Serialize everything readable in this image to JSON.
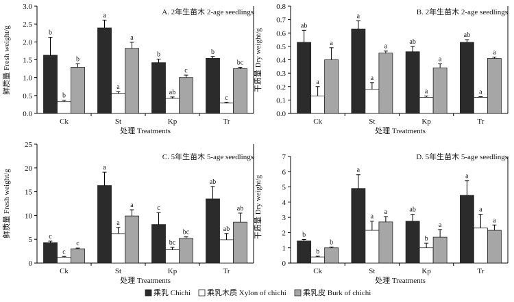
{
  "legend": [
    {
      "label": "乘乳 Chichi",
      "color": "#2b2b2b"
    },
    {
      "label": "乘乳木质 Xylon of chichi",
      "color": "#ffffff"
    },
    {
      "label": "乘乳皮 Burk of chichi",
      "color": "#a6a6a6"
    }
  ],
  "chart_data": [
    {
      "type": "bar",
      "title": "A. 2年生苗木 2-age seedlings",
      "xlabel": "处理 Treatments",
      "ylabel": "鲜质量 Fresh weight/g",
      "categories": [
        "Ck",
        "St",
        "Kp",
        "Tr"
      ],
      "ylim": [
        0,
        3.0
      ],
      "yticks": [
        "0.0",
        "0.5",
        "1.0",
        "1.5",
        "2.0",
        "2.5",
        "3.0"
      ],
      "series": [
        {
          "name": "乘乳 Chichi",
          "values": [
            1.63,
            2.39,
            1.42,
            1.54
          ],
          "errors": [
            0.5,
            0.22,
            0.1,
            0.05
          ],
          "labels": [
            "b",
            "a",
            "b",
            "b"
          ]
        },
        {
          "name": "乘乳木质 Xylon of chichi",
          "values": [
            0.33,
            0.56,
            0.42,
            0.29
          ],
          "errors": [
            0.04,
            0.05,
            0.04,
            0.02
          ],
          "labels": [
            "b",
            "a",
            "ab",
            "c"
          ]
        },
        {
          "name": "乘乳皮 Burk of chichi",
          "values": [
            1.29,
            1.82,
            1.0,
            1.25
          ],
          "errors": [
            0.1,
            0.17,
            0.07,
            0.04
          ],
          "labels": [
            "b",
            "a",
            "c",
            "bc"
          ]
        }
      ]
    },
    {
      "type": "bar",
      "title": "B. 2年生苗木 2-age seedlings",
      "xlabel": "处理 Treatments",
      "ylabel": "干质量 Dry weight/g",
      "categories": [
        "Ck",
        "St",
        "Kp",
        "Tr"
      ],
      "ylim": [
        0,
        0.8
      ],
      "yticks": [
        "0.0",
        "0.1",
        "0.2",
        "0.3",
        "0.4",
        "0.5",
        "0.6",
        "0.7",
        "0.8"
      ],
      "series": [
        {
          "name": "乘乳 Chichi",
          "values": [
            0.53,
            0.63,
            0.46,
            0.53
          ],
          "errors": [
            0.09,
            0.06,
            0.04,
            0.02
          ],
          "labels": [
            "ab",
            "a",
            "ab",
            "ab"
          ]
        },
        {
          "name": "乘乳木质 Xylon of chichi",
          "values": [
            0.13,
            0.18,
            0.12,
            0.12
          ],
          "errors": [
            0.07,
            0.05,
            0.01,
            0.005
          ],
          "labels": [
            "a",
            "a",
            "a",
            "a"
          ]
        },
        {
          "name": "乘乳皮 Burk of chichi",
          "values": [
            0.4,
            0.45,
            0.34,
            0.41
          ],
          "errors": [
            0.09,
            0.015,
            0.03,
            0.01
          ],
          "labels": [
            "a",
            "a",
            "a",
            "a"
          ]
        }
      ]
    },
    {
      "type": "bar",
      "title": "C. 5年生苗木 5-age seedlings",
      "xlabel": "处理 Treatments",
      "ylabel": "鲜质量 Fresh weight/g",
      "categories": [
        "Ck",
        "St",
        "Kp",
        "Tr"
      ],
      "ylim": [
        0,
        25
      ],
      "yticks": [
        "0",
        "5",
        "10",
        "15",
        "20",
        "25"
      ],
      "series": [
        {
          "name": "乘乳 Chichi",
          "values": [
            4.3,
            16.3,
            8.1,
            13.5
          ],
          "errors": [
            0.3,
            2.8,
            2.5,
            2.6
          ],
          "labels": [
            "c",
            "a",
            "c",
            "ab"
          ]
        },
        {
          "name": "乘乳木质 Xylon of chichi",
          "values": [
            1.2,
            6.2,
            2.8,
            4.9
          ],
          "errors": [
            0.2,
            1.3,
            0.5,
            1.3
          ],
          "labels": [
            "c",
            "a",
            "bc",
            "ab"
          ]
        },
        {
          "name": "乘乳皮 Burk of chichi",
          "values": [
            3.0,
            9.9,
            5.2,
            8.6
          ],
          "errors": [
            0.15,
            1.3,
            0.3,
            1.9
          ],
          "labels": [
            "c",
            "a",
            "bc",
            "ab"
          ]
        }
      ]
    },
    {
      "type": "bar",
      "title": "D. 5年生苗木 5-age seedlings",
      "xlabel": "处理 Treatments",
      "ylabel": "干质量 Dry weight/g",
      "categories": [
        "Ck",
        "St",
        "Kp",
        "Tr"
      ],
      "ylim": [
        0,
        7
      ],
      "yticks": [
        "0",
        "1",
        "2",
        "3",
        "4",
        "5",
        "6",
        "7"
      ],
      "series": [
        {
          "name": "乘乳 Chichi",
          "values": [
            1.45,
            4.9,
            2.75,
            4.45
          ],
          "errors": [
            0.1,
            0.9,
            0.45,
            0.95
          ],
          "labels": [
            "b",
            "a",
            "ab",
            "a"
          ]
        },
        {
          "name": "乘乳木质 Xylon of chichi",
          "values": [
            0.4,
            2.15,
            1.0,
            2.3
          ],
          "errors": [
            0.05,
            0.6,
            0.3,
            0.9
          ],
          "labels": [
            "b",
            "a",
            "b",
            "a"
          ]
        },
        {
          "name": "乘乳皮 Burk of chichi",
          "values": [
            1.0,
            2.7,
            1.7,
            2.15
          ],
          "errors": [
            0.05,
            0.35,
            0.5,
            0.35
          ],
          "labels": [
            "b",
            "a",
            "a",
            "a"
          ]
        }
      ]
    }
  ]
}
